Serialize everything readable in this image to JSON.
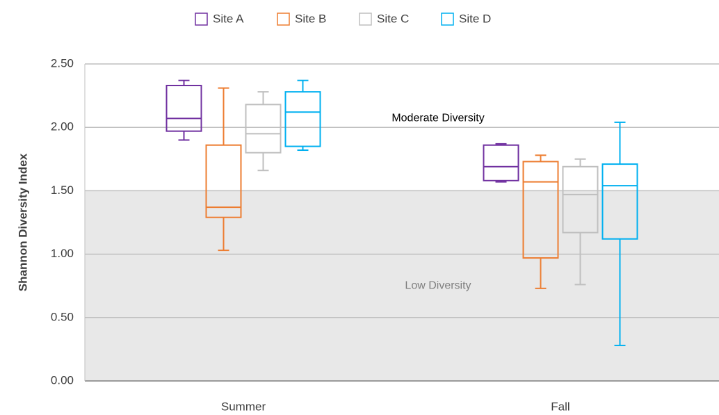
{
  "chart_data": {
    "type": "box",
    "y_label": "Shannon Diversity Index",
    "categories": [
      "Summer",
      "Fall"
    ],
    "ylim": [
      0,
      2.5
    ],
    "yticks": [
      {
        "value": 0,
        "label": "0.00"
      },
      {
        "value": 0.5,
        "label": "0.50"
      },
      {
        "value": 1,
        "label": "1.00"
      },
      {
        "value": 1.5,
        "label": "1.50"
      },
      {
        "value": 2,
        "label": "2.00"
      },
      {
        "value": 2.5,
        "label": "2.50"
      }
    ],
    "grid": true,
    "legend": "top",
    "bands": [
      {
        "label": "Low Diversity",
        "from": 0,
        "to": 1.5,
        "color": "#e8e8e8"
      },
      {
        "label": "Moderate Diversity",
        "from": 1.5,
        "to": 2.5,
        "color": "#ffffff"
      }
    ],
    "series": [
      {
        "name": "Site A",
        "color": "#7030a0",
        "min": [
          1.9,
          1.57
        ],
        "q1": [
          1.97,
          1.58
        ],
        "median": [
          2.07,
          1.69
        ],
        "q3": [
          2.33,
          1.86
        ],
        "max": [
          2.37,
          1.87
        ]
      },
      {
        "name": "Site B",
        "color": "#ed7d31",
        "min": [
          1.03,
          0.73
        ],
        "q1": [
          1.29,
          0.97
        ],
        "median": [
          1.37,
          1.57
        ],
        "q3": [
          1.86,
          1.73
        ],
        "max": [
          2.31,
          1.78
        ]
      },
      {
        "name": "Site C",
        "color": "#bfbfbf",
        "min": [
          1.66,
          0.76
        ],
        "q1": [
          1.8,
          1.17
        ],
        "median": [
          1.95,
          1.47
        ],
        "q3": [
          2.18,
          1.69
        ],
        "max": [
          2.28,
          1.75
        ]
      },
      {
        "name": "Site D",
        "color": "#00b0f0",
        "min": [
          1.82,
          0.28
        ],
        "q1": [
          1.85,
          1.12
        ],
        "median": [
          2.12,
          1.54
        ],
        "q3": [
          2.28,
          1.71
        ],
        "max": [
          2.37,
          2.04
        ]
      }
    ]
  }
}
